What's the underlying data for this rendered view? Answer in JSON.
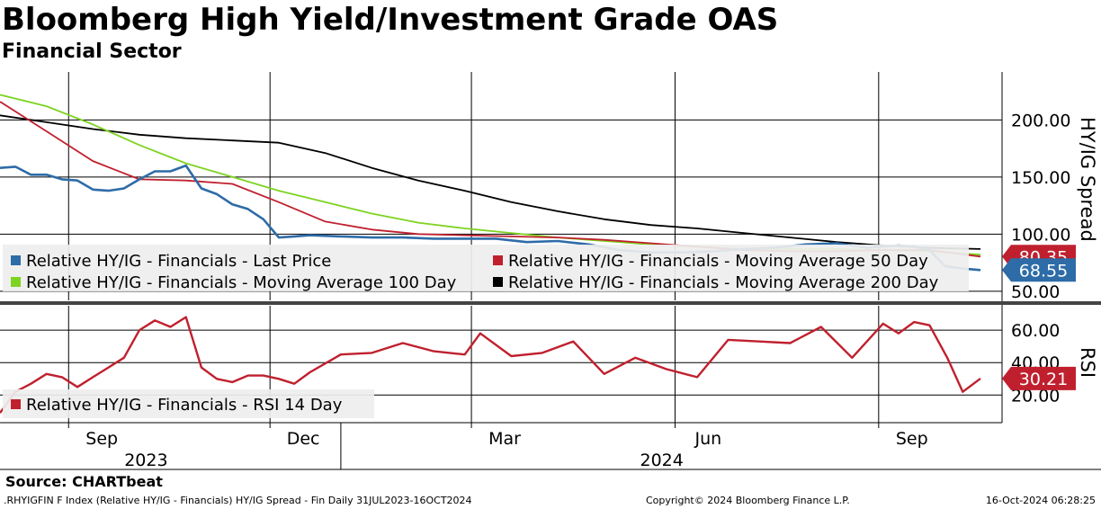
{
  "header": {
    "title": "Bloomberg High Yield/Investment Grade OAS",
    "subtitle": "Financial Sector"
  },
  "footer": {
    "source": "Source: CHARTbeat",
    "description": ".RHYIGFIN F Index (Relative HY/IG - Financials) HY/IG Spread - Fin  Daily 31JUL2023-16OCT2024",
    "copyright": "Copyright© 2024 Bloomberg Finance L.P.",
    "timestamp": "16-Oct-2024 06:28:25"
  },
  "colors": {
    "last_price": "#2e6ca8",
    "last_price_light": "#8fb2d3",
    "ma50": "#c0202e",
    "ma100": "#7ed321",
    "ma200": "#000000",
    "rsi": "#c0202e"
  },
  "chart_data": [
    {
      "type": "line",
      "ylabel": "HY/IG Spread",
      "ylim": [
        42,
        242
      ],
      "yticks": [
        "200.00",
        "150.00",
        "100.00",
        "50.00"
      ],
      "ytick_values": [
        200,
        150,
        100,
        50
      ],
      "xlim": [
        "2023-07-31",
        "2024-10-16"
      ],
      "x_month_labels": [
        "Sep",
        "Dec",
        "Mar",
        "Jun",
        "Sep"
      ],
      "year_labels": [
        "2023",
        "2024"
      ],
      "grid": true,
      "legend": "bottom-left",
      "last_values": {
        "ma50": "80.35",
        "last_price": "68.55"
      },
      "series": [
        {
          "name": "Relative HY/IG - Financials - Last Price",
          "color": "#2e6ca8",
          "x": [
            "2023-07-31",
            "2023-08-07",
            "2023-08-14",
            "2023-08-21",
            "2023-08-28",
            "2023-09-04",
            "2023-09-11",
            "2023-09-18",
            "2023-09-25",
            "2023-10-02",
            "2023-10-09",
            "2023-10-16",
            "2023-10-23",
            "2023-10-30",
            "2023-11-06",
            "2023-11-13",
            "2023-11-20",
            "2023-11-27",
            "2023-12-04",
            "2023-12-11",
            "2023-12-18",
            "2024-01-01",
            "2024-01-15",
            "2024-01-29",
            "2024-02-12",
            "2024-02-26",
            "2024-03-11",
            "2024-03-25",
            "2024-04-08",
            "2024-04-22",
            "2024-05-06",
            "2024-05-20",
            "2024-06-03",
            "2024-06-17",
            "2024-07-01",
            "2024-07-15",
            "2024-07-29",
            "2024-08-12",
            "2024-08-26",
            "2024-09-09",
            "2024-09-16",
            "2024-09-23",
            "2024-09-30",
            "2024-10-07",
            "2024-10-16"
          ],
          "values": [
            158,
            159,
            152,
            152,
            148,
            147,
            139,
            138,
            140,
            148,
            155,
            155,
            160,
            140,
            135,
            126,
            122,
            113,
            97,
            98,
            99,
            98,
            97,
            97,
            96,
            96,
            96,
            93,
            94,
            91,
            86,
            84,
            84,
            85,
            87,
            88,
            91,
            92,
            88,
            90,
            89,
            86,
            72,
            70,
            68.55
          ]
        },
        {
          "name": "Relative HY/IG - Financials - Moving Average 50 Day",
          "color": "#c0202e",
          "x": [
            "2023-07-31",
            "2023-08-21",
            "2023-09-11",
            "2023-10-02",
            "2023-10-23",
            "2023-11-13",
            "2023-12-04",
            "2023-12-25",
            "2024-01-15",
            "2024-02-05",
            "2024-02-26",
            "2024-03-18",
            "2024-04-08",
            "2024-04-29",
            "2024-05-20",
            "2024-06-10",
            "2024-07-01",
            "2024-07-22",
            "2024-08-12",
            "2024-09-02",
            "2024-09-23",
            "2024-10-16"
          ],
          "values": [
            216,
            190,
            164,
            148,
            147,
            144,
            128,
            111,
            104,
            100,
            99,
            98,
            97,
            95,
            92,
            89,
            86,
            85,
            85,
            86,
            86,
            80.35
          ]
        },
        {
          "name": "Relative HY/IG - Financials - Moving Average 100 Day",
          "color": "#7ed321",
          "x": [
            "2023-07-31",
            "2023-08-21",
            "2023-09-11",
            "2023-10-02",
            "2023-10-23",
            "2023-11-13",
            "2023-12-04",
            "2023-12-25",
            "2024-01-15",
            "2024-02-05",
            "2024-02-26",
            "2024-03-18",
            "2024-04-08",
            "2024-04-29",
            "2024-05-20",
            "2024-06-10",
            "2024-07-01",
            "2024-07-22",
            "2024-08-12",
            "2024-09-02",
            "2024-09-23",
            "2024-10-16"
          ],
          "values": [
            222,
            212,
            196,
            178,
            162,
            150,
            138,
            128,
            118,
            110,
            105,
            101,
            97,
            94,
            91,
            89,
            87,
            87,
            87,
            86,
            85,
            82
          ]
        },
        {
          "name": "Relative HY/IG - Financials - Moving Average 200 Day",
          "color": "#000000",
          "x": [
            "2023-07-31",
            "2023-08-21",
            "2023-09-11",
            "2023-10-02",
            "2023-10-23",
            "2023-11-13",
            "2023-12-04",
            "2023-12-25",
            "2024-01-15",
            "2024-02-05",
            "2024-02-26",
            "2024-03-18",
            "2024-04-08",
            "2024-04-29",
            "2024-05-20",
            "2024-06-10",
            "2024-07-01",
            "2024-07-22",
            "2024-08-12",
            "2024-09-02",
            "2024-09-23",
            "2024-10-16"
          ],
          "values": [
            204,
            198,
            192,
            187,
            184,
            182,
            180,
            171,
            158,
            147,
            138,
            128,
            120,
            113,
            108,
            105,
            101,
            97,
            93,
            90,
            88,
            87
          ]
        }
      ]
    },
    {
      "type": "line",
      "ylabel": "RSI",
      "ylim": [
        3,
        75
      ],
      "yticks": [
        "60.00",
        "40.00",
        "20.00"
      ],
      "ytick_values": [
        60,
        40,
        20
      ],
      "xlim": [
        "2023-07-31",
        "2024-10-16"
      ],
      "grid": true,
      "legend": "bottom-left",
      "last_values": {
        "rsi": "30.21"
      },
      "series": [
        {
          "name": "Relative HY/IG - Financials - RSI 14 Day",
          "color": "#c0202e",
          "x": [
            "2023-07-31",
            "2023-08-07",
            "2023-08-14",
            "2023-08-21",
            "2023-08-28",
            "2023-09-04",
            "2023-09-11",
            "2023-09-18",
            "2023-09-25",
            "2023-10-02",
            "2023-10-09",
            "2023-10-16",
            "2023-10-23",
            "2023-10-30",
            "2023-11-06",
            "2023-11-13",
            "2023-11-20",
            "2023-11-27",
            "2023-12-04",
            "2023-12-11",
            "2023-12-18",
            "2024-01-01",
            "2024-01-15",
            "2024-01-29",
            "2024-02-12",
            "2024-02-26",
            "2024-03-04",
            "2024-03-18",
            "2024-04-01",
            "2024-04-15",
            "2024-04-29",
            "2024-05-13",
            "2024-05-27",
            "2024-06-10",
            "2024-06-24",
            "2024-07-08",
            "2024-07-22",
            "2024-08-05",
            "2024-08-19",
            "2024-09-02",
            "2024-09-09",
            "2024-09-16",
            "2024-09-23",
            "2024-10-01",
            "2024-10-08",
            "2024-10-16"
          ],
          "values": [
            9,
            22,
            27,
            33,
            31,
            25,
            31,
            37,
            43,
            60,
            66,
            62,
            68,
            37,
            30,
            28,
            32,
            32,
            30,
            27,
            34,
            45,
            46,
            52,
            47,
            45,
            58,
            44,
            46,
            53,
            33,
            43,
            36,
            31,
            54,
            53,
            52,
            62,
            43,
            64,
            58,
            65,
            63,
            43,
            22,
            30.21
          ]
        }
      ]
    }
  ]
}
